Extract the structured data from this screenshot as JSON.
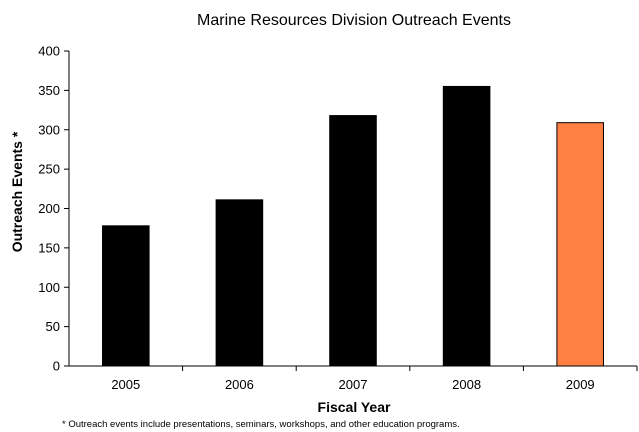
{
  "chart_data": {
    "type": "bar",
    "title": "Marine Resources Division Outreach Events",
    "xlabel": "Fiscal Year",
    "ylabel": "Outreach Events *",
    "categories": [
      "2005",
      "2006",
      "2007",
      "2008",
      "2009"
    ],
    "values": [
      178,
      211,
      318,
      355,
      309
    ],
    "ylim": [
      0,
      400
    ],
    "yticks": [
      0,
      50,
      100,
      150,
      200,
      250,
      300,
      350,
      400
    ],
    "grid": false,
    "legend": "none",
    "bar_colors": [
      "#000000",
      "#000000",
      "#000000",
      "#000000",
      "#ff8040"
    ],
    "footnote": "* Outreach events include presentations, seminars, workshops, and other education programs."
  }
}
